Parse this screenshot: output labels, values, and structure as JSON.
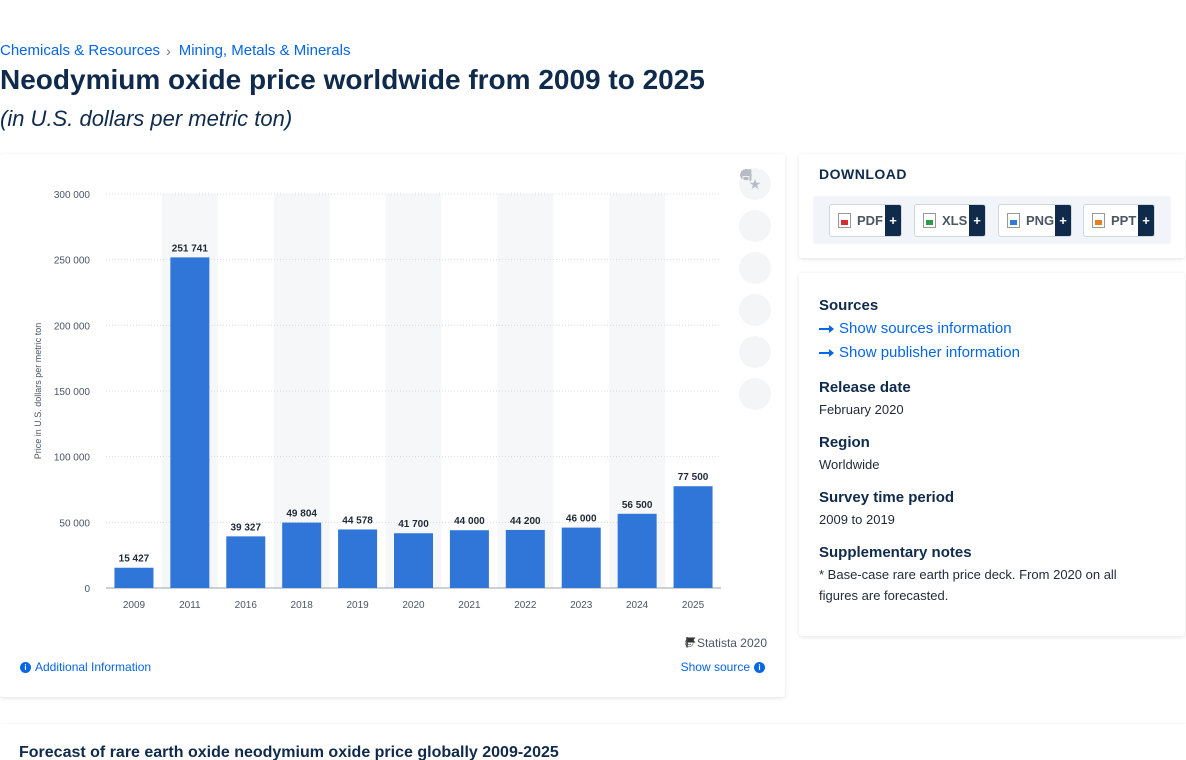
{
  "breadcrumb": {
    "items": [
      "Chemicals & Resources",
      "Mining, Metals & Minerals"
    ],
    "separator": "›"
  },
  "title": "Neodymium oxide price worldwide from 2009 to 2025",
  "subtitle": "(in U.S. dollars per metric ton)",
  "chart_data": {
    "type": "bar",
    "categories": [
      "2009",
      "2011",
      "2016",
      "2018",
      "2019",
      "2020",
      "2021",
      "2022",
      "2023",
      "2024",
      "2025"
    ],
    "values": [
      15427,
      251741,
      39327,
      49804,
      44578,
      41700,
      44000,
      44200,
      46000,
      56500,
      77500
    ],
    "value_labels": [
      "15 427",
      "251 741",
      "39 327",
      "49 804",
      "44 578",
      "41 700",
      "44 000",
      "44 200",
      "46 000",
      "56 500",
      "77 500"
    ],
    "ylabel": "Price in U.S. dollars per metric ton",
    "ylim": [
      0,
      300000
    ],
    "yticks": [
      0,
      50000,
      100000,
      150000,
      200000,
      250000,
      300000
    ],
    "ytick_labels": [
      "0",
      "50 000",
      "100 000",
      "150 000",
      "200 000",
      "250 000",
      "300 000"
    ],
    "grid": true,
    "bar_color": "#2f76d8",
    "band_color": "#f6f7f9"
  },
  "chart_footer": {
    "credit": "© Statista 2020",
    "additional_info": "Additional Information",
    "show_source": "Show source"
  },
  "download": {
    "title": "DOWNLOAD",
    "buttons": [
      {
        "label": "PDF",
        "icon": "pdf-file-icon"
      },
      {
        "label": "XLS",
        "icon": "xls-file-icon"
      },
      {
        "label": "PPT",
        "icon": "ppt-file-icon"
      },
      {
        "label": "PNG",
        "icon": "png-file-icon"
      }
    ],
    "plus": "+"
  },
  "info": {
    "sources_heading": "Sources",
    "show_sources": "Show sources information",
    "show_publisher": "Show publisher information",
    "release_date_heading": "Release date",
    "release_date": "February 2020",
    "region_heading": "Region",
    "region": "Worldwide",
    "survey_heading": "Survey time period",
    "survey": "2009 to 2019",
    "notes_heading": "Supplementary notes",
    "notes": "* Base-case rare earth price deck. From 2020 on all figures are forecasted."
  },
  "related": {
    "title": "Forecast of rare earth oxide neodymium oxide price globally 2009-2025"
  }
}
